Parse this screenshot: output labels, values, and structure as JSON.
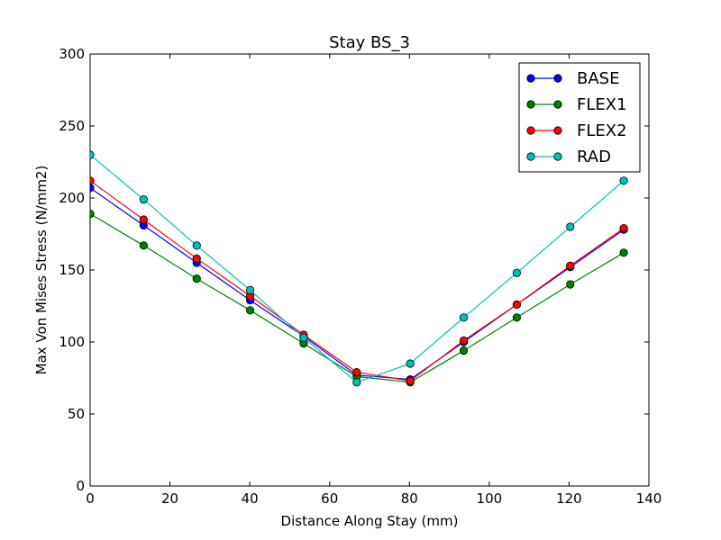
{
  "chart_data": {
    "type": "line",
    "title": "Stay BS_3",
    "xlabel": "Distance Along Stay (mm)",
    "ylabel": "Max Von Mises Stress (N/mm2)",
    "xlim": [
      0,
      140
    ],
    "ylim": [
      0,
      300
    ],
    "xticks": [
      0,
      20,
      40,
      60,
      80,
      100,
      120,
      140
    ],
    "yticks": [
      0,
      50,
      100,
      150,
      200,
      250,
      300
    ],
    "grid": false,
    "legend_position": "top-right",
    "x": [
      0,
      13.4,
      26.7,
      40.1,
      53.5,
      66.8,
      80.2,
      93.6,
      106.9,
      120.3,
      133.7
    ],
    "series": [
      {
        "name": "BASE",
        "color": "#0000ff",
        "values": [
          207,
          181,
          155,
          129,
          104,
          77,
          74,
          100,
          126,
          152,
          178
        ]
      },
      {
        "name": "FLEX1",
        "color": "#008000",
        "values": [
          189,
          167,
          144,
          122,
          99,
          76,
          72,
          94,
          117,
          140,
          162
        ]
      },
      {
        "name": "FLEX2",
        "color": "#ff0000",
        "values": [
          212,
          185,
          158,
          132,
          105,
          79,
          73,
          101,
          126,
          153,
          179
        ]
      },
      {
        "name": "RAD",
        "color": "#00bfbf",
        "values": [
          230,
          199,
          167,
          136,
          103,
          72,
          85,
          117,
          148,
          180,
          212
        ]
      }
    ]
  }
}
